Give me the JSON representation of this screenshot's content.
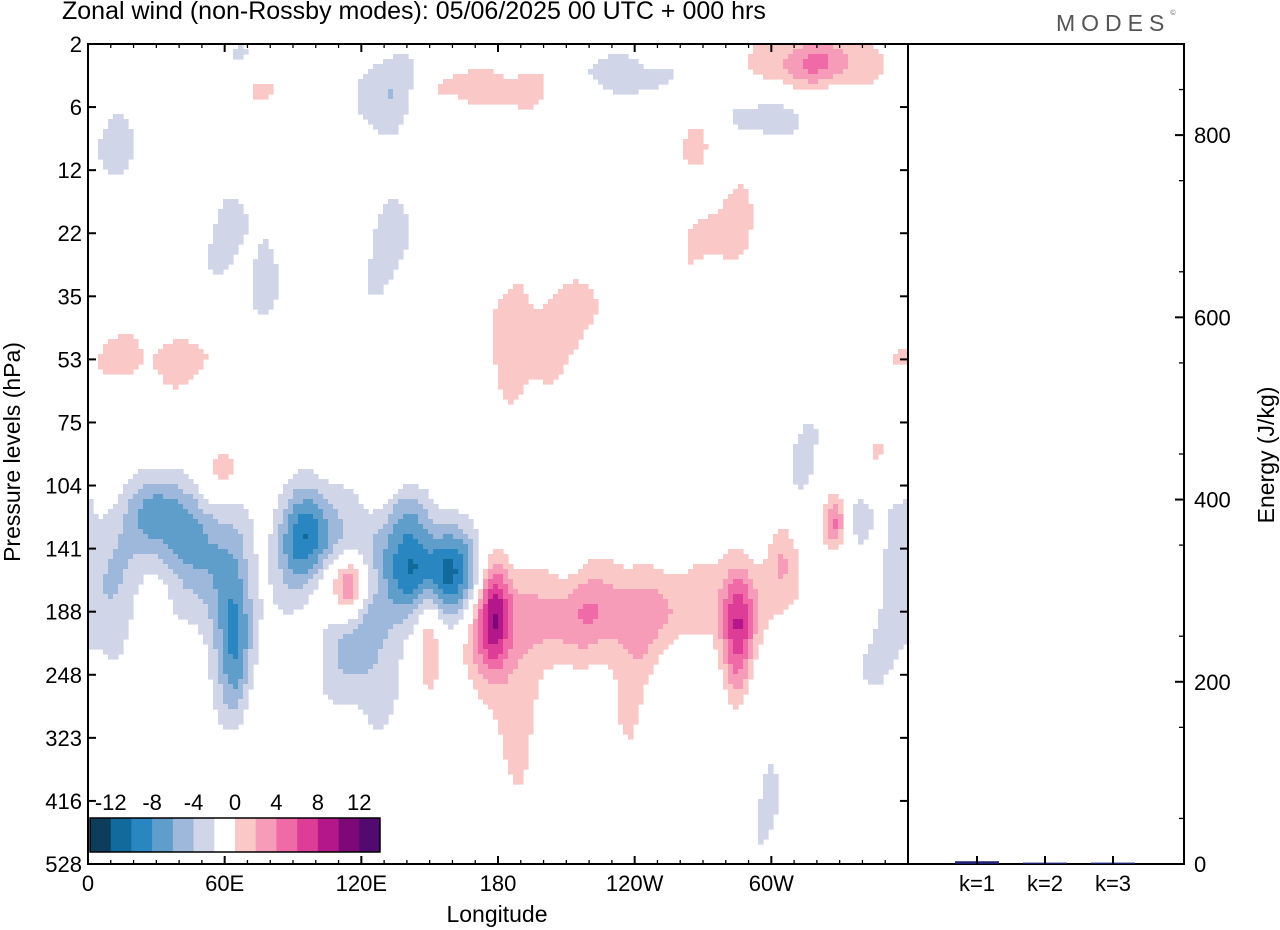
{
  "header": {
    "title": "Zonal wind (non-Rossby modes):  05/06/2025  00 UTC  + 000 hrs",
    "brand": "MODES",
    "brand_mark": "©"
  },
  "chart_data": [
    {
      "type": "heatmap",
      "title": "Zonal wind (non-Rossby modes):  05/06/2025  00 UTC  + 000 hrs",
      "xlabel": "Longitude",
      "ylabel": "Pressure levels (hPa)",
      "x_ticks": [
        "0",
        "60E",
        "120E",
        "180",
        "120W",
        "60W"
      ],
      "y_ticks": [
        "2",
        "6",
        "12",
        "22",
        "35",
        "53",
        "75",
        "104",
        "141",
        "188",
        "248",
        "323",
        "416",
        "528"
      ],
      "colorbar": {
        "labels": [
          "-12",
          "-8",
          "-4",
          "0",
          "4",
          "8",
          "12"
        ],
        "levels": [
          -14,
          -12,
          -10,
          -8,
          -6,
          -4,
          -2,
          2,
          4,
          6,
          8,
          10,
          12,
          14
        ],
        "colors": [
          "#0e3d5c",
          "#12699b",
          "#2a86c1",
          "#5f9dcb",
          "#9db8da",
          "#d0d5e8",
          "#ffffff",
          "#fac8c6",
          "#f79cb8",
          "#ef6aa7",
          "#de3d97",
          "#b3178a",
          "#7d0878",
          "#520a70"
        ]
      },
      "features": [
        {
          "lon": 150,
          "lev": 8.4,
          "sl": 18,
          "sv": 0.55,
          "a": -13
        },
        {
          "lon": 40,
          "lev": 7.6,
          "sl": 10,
          "sv": 0.5,
          "a": -4
        },
        {
          "lon": 98,
          "lev": 8.0,
          "sl": 12,
          "sv": 0.7,
          "a": -5
        },
        {
          "lon": 60,
          "lev": 8.8,
          "sl": 10,
          "sv": 0.9,
          "a": -5
        },
        {
          "lon": 8,
          "lev": 8.6,
          "sl": 12,
          "sv": 1.0,
          "a": -4
        },
        {
          "lon": 120,
          "lev": 10.0,
          "sl": 15,
          "sv": 0.7,
          "a": -2
        },
        {
          "lon": 175,
          "lev": 11.5,
          "sl": 12,
          "sv": 1.6,
          "a": -2
        },
        {
          "lon": 262,
          "lev": 10.5,
          "sl": 10,
          "sv": 1.0,
          "a": -2
        },
        {
          "lon": 340,
          "lev": 9.5,
          "sl": 12,
          "sv": 1.6,
          "a": -2
        },
        {
          "lon": 300,
          "lev": 11.5,
          "sl": 10,
          "sv": 1.4,
          "a": -2
        },
        {
          "lon": 28,
          "lev": 7.4,
          "sl": 8,
          "sv": 0.45,
          "a": -4
        },
        {
          "lon": 45,
          "lev": 8.0,
          "sl": 12,
          "sv": 0.6,
          "a": -3
        },
        {
          "lon": 95,
          "lev": 7.8,
          "sl": 8,
          "sv": 0.6,
          "a": -5
        },
        {
          "lon": 120,
          "lev": 9.0,
          "sl": 9,
          "sv": 0.9,
          "a": -5
        },
        {
          "lon": 65,
          "lev": 9.7,
          "sl": 5,
          "sv": 0.9,
          "a": -5
        },
        {
          "lon": 140,
          "lev": 7.4,
          "sl": 8,
          "sv": 0.3,
          "a": -3
        },
        {
          "lon": 248,
          "lev": 8.9,
          "sl": 60,
          "sv": 0.5,
          "a": 3
        },
        {
          "lon": 178,
          "lev": 9.8,
          "sl": 9,
          "sv": 1.2,
          "a": 4
        },
        {
          "lon": 190,
          "lev": 11.8,
          "sl": 8,
          "sv": 1.4,
          "a": 2.5
        },
        {
          "lon": 240,
          "lev": 10.8,
          "sl": 10,
          "sv": 1.2,
          "a": 2
        },
        {
          "lon": 116,
          "lev": 8.5,
          "sl": 14,
          "sv": 0.35,
          "a": 6
        },
        {
          "lon": 115,
          "lev": 8.7,
          "sl": 5,
          "sv": 0.4,
          "a": 7
        },
        {
          "lon": 178,
          "lev": 8.9,
          "sl": 5,
          "sv": 0.7,
          "a": 8
        },
        {
          "lon": 285,
          "lev": 9.3,
          "sl": 5,
          "sv": 0.8,
          "a": 8
        },
        {
          "lon": 305,
          "lev": 8.1,
          "sl": 5,
          "sv": 0.5,
          "a": 4
        },
        {
          "lon": 328,
          "lev": 7.6,
          "sl": 4,
          "sv": 0.35,
          "a": 8
        },
        {
          "lon": 345,
          "lev": 6.5,
          "sl": 12,
          "sv": 0.4,
          "a": 4
        },
        {
          "lon": 150,
          "lev": 9.2,
          "sl": 4,
          "sv": 0.8,
          "a": 5
        },
        {
          "lon": 215,
          "lev": 9.2,
          "sl": 35,
          "sv": 0.55,
          "a": 3
        },
        {
          "lon": 30,
          "lev": 5.0,
          "sl": 40,
          "sv": 0.35,
          "a": 2.8
        },
        {
          "lon": 60,
          "lev": 6.8,
          "sl": 10,
          "sv": 0.3,
          "a": 2.5
        },
        {
          "lon": 205,
          "lev": 4.2,
          "sl": 30,
          "sv": 0.5,
          "a": 2.6
        },
        {
          "lon": 280,
          "lev": 3.0,
          "sl": 18,
          "sv": 0.6,
          "a": 2.5
        },
        {
          "lon": 80,
          "lev": 0.6,
          "sl": 30,
          "sv": 0.3,
          "a": 2.8
        },
        {
          "lon": 175,
          "lev": 0.7,
          "sl": 25,
          "sv": 0.3,
          "a": 3.5
        },
        {
          "lon": 320,
          "lev": 0.3,
          "sl": 20,
          "sv": 0.3,
          "a": 6
        },
        {
          "lon": 270,
          "lev": 1.3,
          "sl": 12,
          "sv": 0.5,
          "a": 3.5
        },
        {
          "lon": 150,
          "lev": 1.8,
          "sl": 6,
          "sv": 0.6,
          "a": 2.5
        },
        {
          "lon": 100,
          "lev": 3.2,
          "sl": 10,
          "sv": 0.5,
          "a": 2.2
        },
        {
          "lon": 70,
          "lev": 0.3,
          "sl": 30,
          "sv": 0.3,
          "a": -2.5
        },
        {
          "lon": 130,
          "lev": 0.7,
          "sl": 14,
          "sv": 0.4,
          "a": -4.5
        },
        {
          "lon": 235,
          "lev": 0.5,
          "sl": 18,
          "sv": 0.3,
          "a": -3.5
        },
        {
          "lon": 290,
          "lev": 1.2,
          "sl": 25,
          "sv": 0.3,
          "a": -3.5
        },
        {
          "lon": 15,
          "lev": 1.7,
          "sl": 12,
          "sv": 0.5,
          "a": -2.6
        },
        {
          "lon": 70,
          "lev": 3.3,
          "sl": 15,
          "sv": 1.0,
          "a": -2.4
        },
        {
          "lon": 140,
          "lev": 3.0,
          "sl": 30,
          "sv": 1.2,
          "a": -2.2
        },
        {
          "lon": 185,
          "lev": 5.2,
          "sl": 20,
          "sv": 0.6,
          "a": 2.2
        },
        {
          "lon": 330,
          "lev": 6.5,
          "sl": 25,
          "sv": 1.0,
          "a": -2.2
        }
      ]
    },
    {
      "type": "bar",
      "ylabel": "Energy (J/kg)",
      "categories": [
        "k=1",
        "k=2",
        "k=3"
      ],
      "values": [
        3,
        1.5,
        1.5
      ],
      "ylim": [
        0,
        900
      ],
      "y_ticks": [
        "0",
        "200",
        "400",
        "600",
        "800"
      ],
      "bar_color": "#1c1f6e"
    }
  ]
}
